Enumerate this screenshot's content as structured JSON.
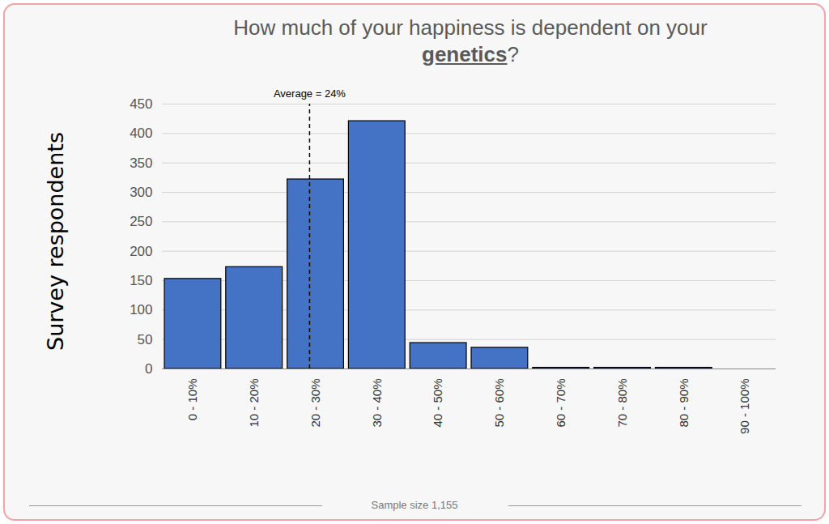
{
  "chart_data": {
    "type": "histogram",
    "title": "How much of your happiness is dependent on your genetics?",
    "y_label": "Survey respondents",
    "caption": "Sample size 1,155",
    "bins": [
      0,
      10,
      20,
      30,
      40,
      50,
      60,
      70,
      80,
      90,
      100
    ],
    "values": [
      153,
      173,
      322,
      421,
      44,
      36,
      2,
      2,
      2,
      0
    ],
    "color": "#4472c4",
    "xlim": [
      0,
      100
    ],
    "xticks": [
      {
        "value": 5,
        "label": "0 - 10%"
      },
      {
        "value": 15,
        "label": "10 - 20%"
      },
      {
        "value": 25,
        "label": "20 - 30%"
      },
      {
        "value": 35,
        "label": "30 - 40%"
      },
      {
        "value": 45,
        "label": "40 - 50%"
      },
      {
        "value": 55,
        "label": "50 - 60%"
      },
      {
        "value": 65,
        "label": "60 - 70%"
      },
      {
        "value": 75,
        "label": "70 - 80%"
      },
      {
        "value": 85,
        "label": "80 - 90%"
      },
      {
        "value": 95,
        "label": "90 - 100%"
      }
    ],
    "ylim": [
      0,
      450
    ],
    "yticks": [
      0,
      50,
      100,
      150,
      200,
      250,
      300,
      350,
      400,
      450
    ],
    "grid": true,
    "annotations": [
      {
        "text": "Average = 24%",
        "x": 24
      }
    ]
  }
}
